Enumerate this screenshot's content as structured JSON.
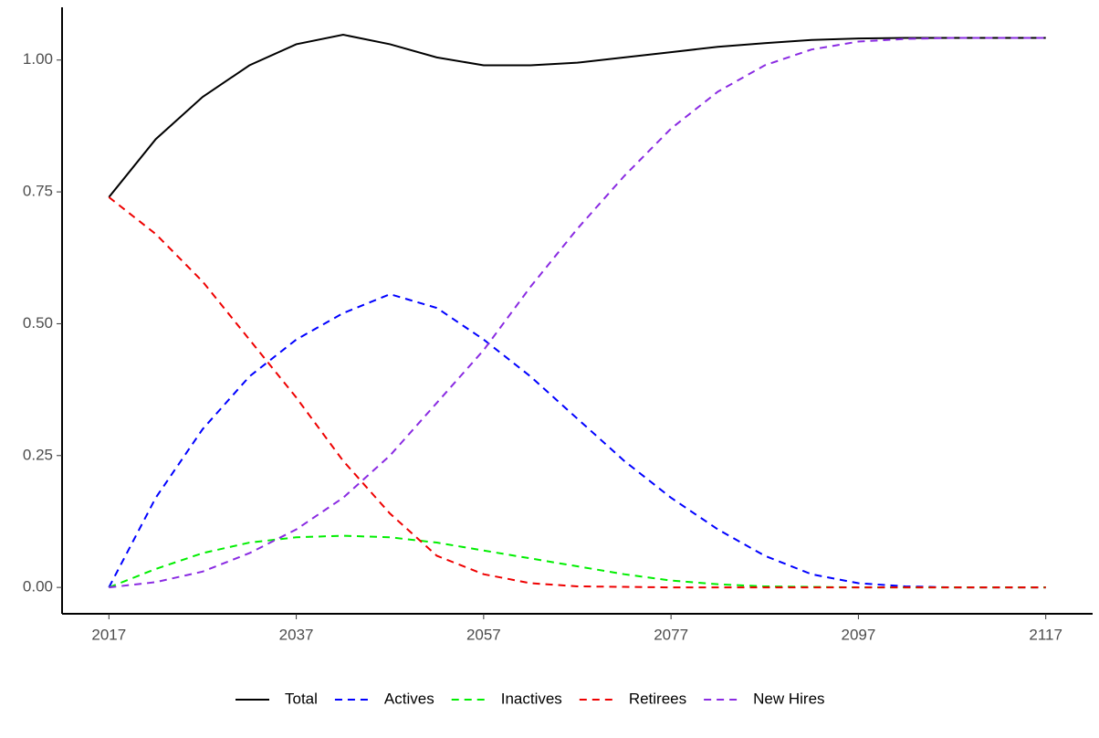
{
  "chart_data": {
    "type": "line",
    "x": [
      2017,
      2022,
      2027,
      2032,
      2037,
      2042,
      2047,
      2052,
      2057,
      2062,
      2067,
      2072,
      2077,
      2082,
      2087,
      2092,
      2097,
      2102,
      2107,
      2112,
      2117
    ],
    "series": [
      {
        "name": "Total",
        "color": "#000000",
        "linestyle": "solid",
        "values": [
          0.74,
          0.85,
          0.93,
          0.99,
          1.03,
          1.048,
          1.03,
          1.005,
          0.99,
          0.99,
          0.995,
          1.005,
          1.015,
          1.025,
          1.032,
          1.038,
          1.041,
          1.042,
          1.042,
          1.042,
          1.042
        ]
      },
      {
        "name": "Actives",
        "color": "#0000ff",
        "linestyle": "dashed",
        "values": [
          0,
          0.17,
          0.3,
          0.4,
          0.47,
          0.52,
          0.556,
          0.53,
          0.47,
          0.4,
          0.32,
          0.24,
          0.17,
          0.11,
          0.06,
          0.025,
          0.008,
          0.002,
          0,
          0,
          0
        ]
      },
      {
        "name": "Inactives",
        "color": "#00ee00",
        "linestyle": "dashed",
        "values": [
          0,
          0.035,
          0.065,
          0.085,
          0.095,
          0.098,
          0.095,
          0.085,
          0.07,
          0.055,
          0.04,
          0.025,
          0.013,
          0.006,
          0.002,
          0.001,
          0,
          0,
          0,
          0,
          0
        ]
      },
      {
        "name": "Retirees",
        "color": "#ee0000",
        "linestyle": "dashed",
        "values": [
          0.74,
          0.67,
          0.58,
          0.47,
          0.36,
          0.24,
          0.14,
          0.06,
          0.025,
          0.008,
          0.002,
          0.001,
          0,
          0,
          0,
          0,
          0,
          0,
          0,
          0,
          0
        ]
      },
      {
        "name": "New Hires",
        "color": "#8a2be2",
        "linestyle": "dashed",
        "values": [
          0,
          0.01,
          0.03,
          0.065,
          0.11,
          0.17,
          0.25,
          0.35,
          0.45,
          0.57,
          0.68,
          0.78,
          0.87,
          0.94,
          0.99,
          1.02,
          1.035,
          1.04,
          1.042,
          1.042,
          1.042
        ]
      }
    ],
    "xlim": [
      2012,
      2122
    ],
    "xticks": [
      2017,
      2037,
      2057,
      2077,
      2097,
      2117
    ],
    "ylim": [
      -0.05,
      1.1
    ],
    "yticks": [
      {
        "value": 0,
        "label": "0.00"
      },
      {
        "value": 0.25,
        "label": "0.25"
      },
      {
        "value": 0.5,
        "label": "0.50"
      },
      {
        "value": 0.75,
        "label": "0.75"
      },
      {
        "value": 1,
        "label": "1.00"
      }
    ],
    "legend": "bottom"
  }
}
